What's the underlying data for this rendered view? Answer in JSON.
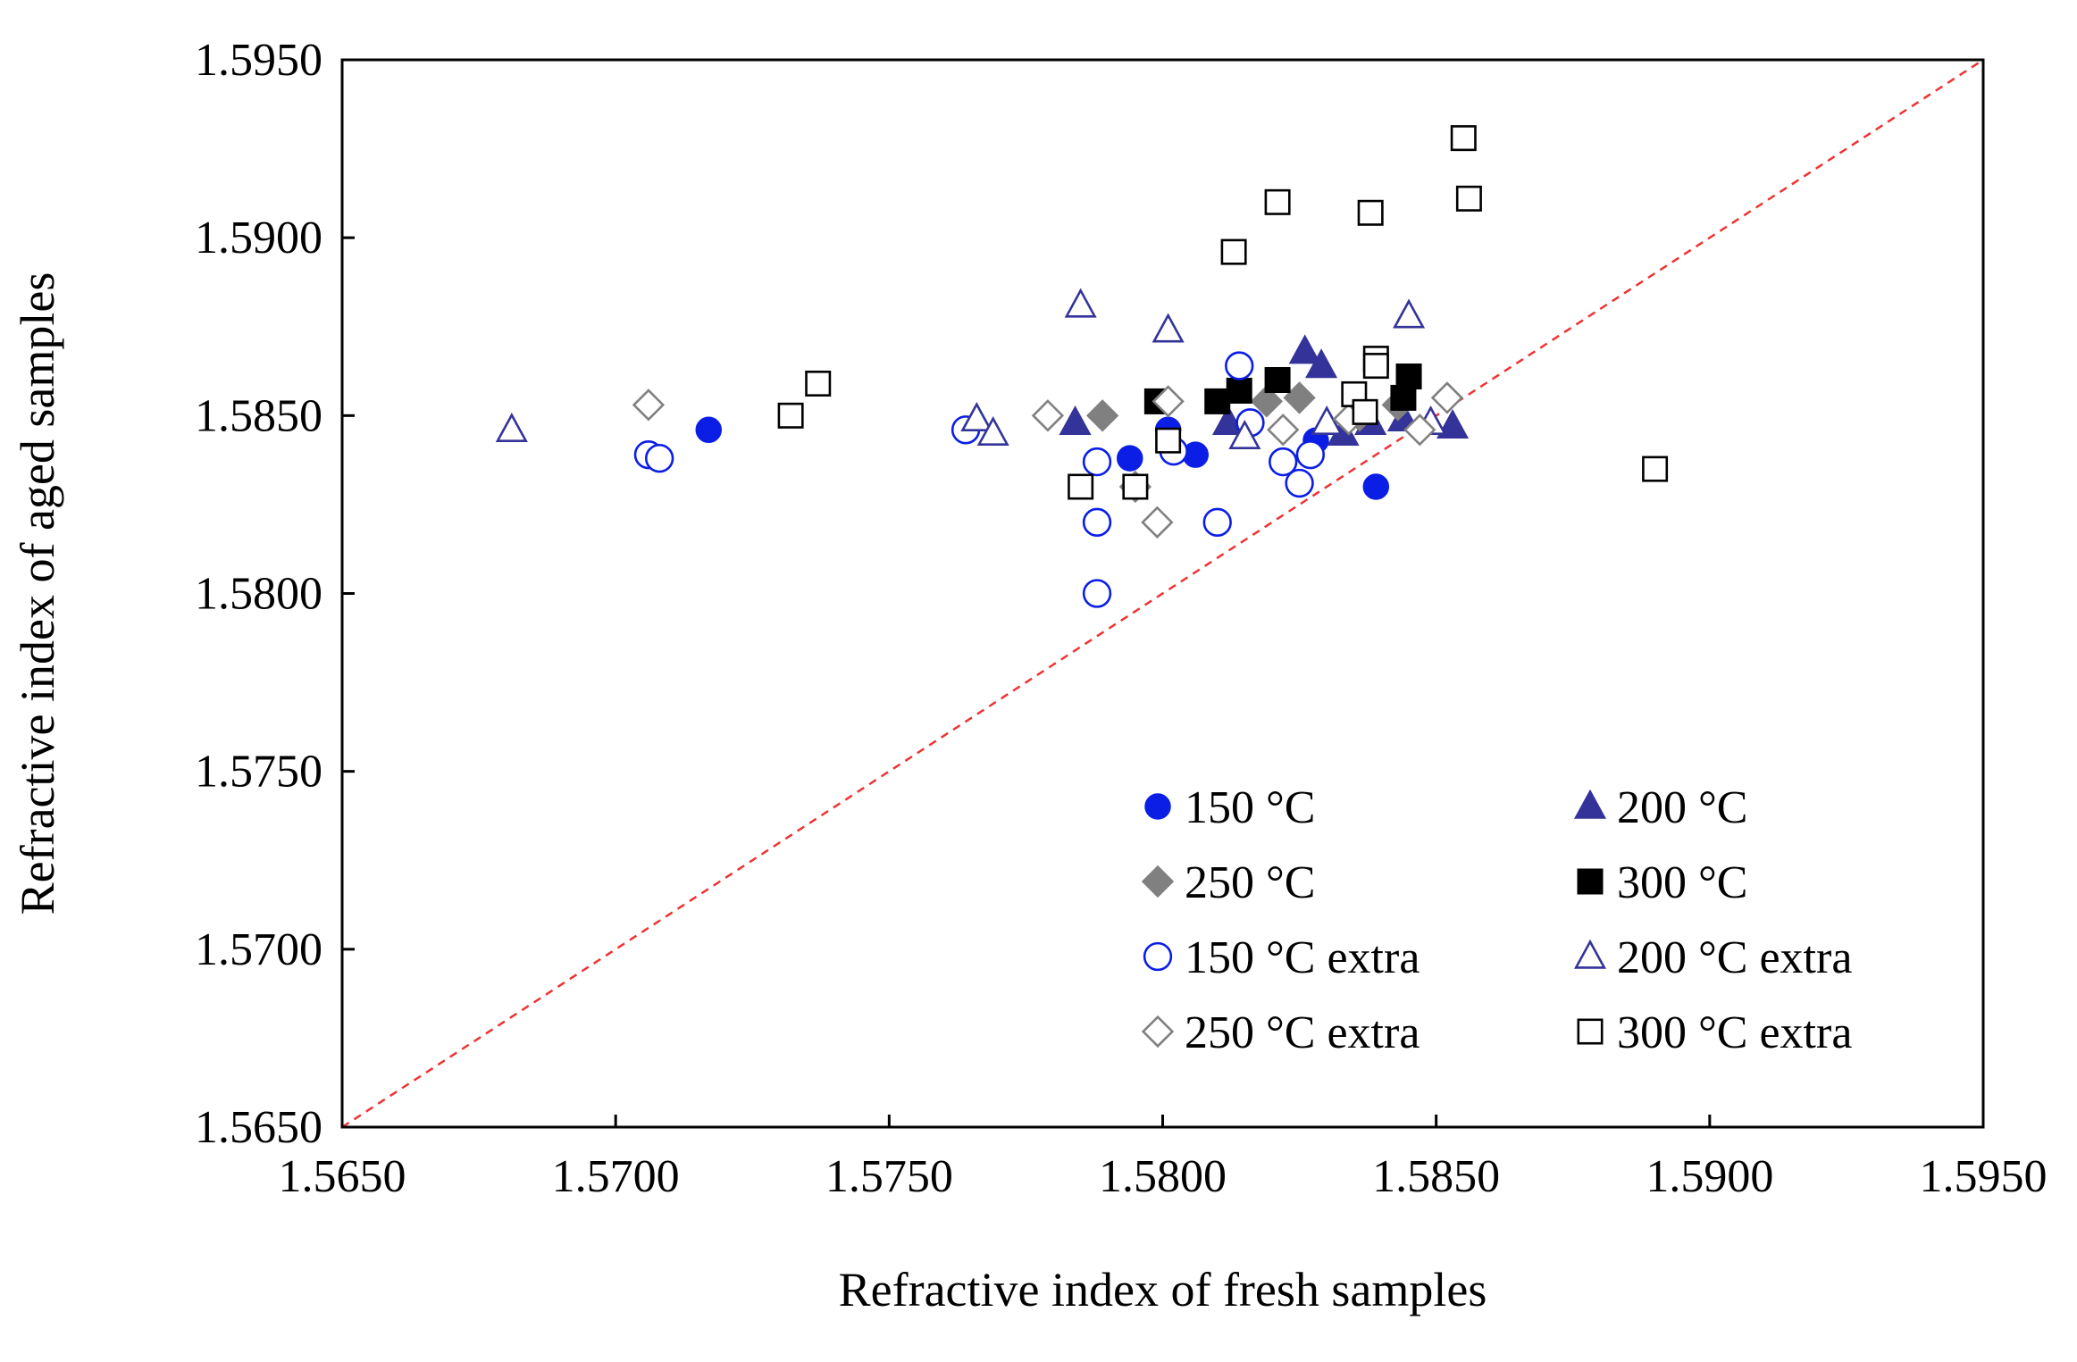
{
  "chart_data": {
    "type": "scatter",
    "title": "",
    "xlabel": "Refractive index of fresh samples",
    "ylabel": "Refractive index of aged samples",
    "xlim": [
      1.565,
      1.595
    ],
    "ylim": [
      1.565,
      1.595
    ],
    "xticks": [
      "1.5650",
      "1.5700",
      "1.5750",
      "1.5800",
      "1.5850",
      "1.5900",
      "1.5950"
    ],
    "yticks": [
      "1.5650",
      "1.5700",
      "1.5750",
      "1.5800",
      "1.5850",
      "1.5900",
      "1.5950"
    ],
    "grid": false,
    "legend_position": "lower-right",
    "reference_line": {
      "style": "dashed",
      "color": "#ee3333",
      "from": [
        1.565,
        1.565
      ],
      "to": [
        1.595,
        1.595
      ]
    },
    "series": [
      {
        "name": "150 °C",
        "marker": "circle",
        "filled": true,
        "color": "#0a1ee6",
        "points": [
          [
            1.5717,
            1.5846
          ],
          [
            1.5794,
            1.5838
          ],
          [
            1.5801,
            1.5846
          ],
          [
            1.5806,
            1.5839
          ],
          [
            1.5828,
            1.5843
          ],
          [
            1.5839,
            1.583
          ]
        ]
      },
      {
        "name": "200 °C",
        "marker": "triangle",
        "filled": true,
        "color": "#33339a",
        "points": [
          [
            1.5784,
            1.5848
          ],
          [
            1.5812,
            1.5848
          ],
          [
            1.5826,
            1.5868
          ],
          [
            1.5829,
            1.5864
          ],
          [
            1.5833,
            1.5845
          ],
          [
            1.5838,
            1.5848
          ],
          [
            1.5844,
            1.5849
          ],
          [
            1.5853,
            1.5847
          ]
        ]
      },
      {
        "name": "250 °C",
        "marker": "diamond",
        "filled": true,
        "color": "#808080",
        "points": [
          [
            1.5789,
            1.585
          ],
          [
            1.5819,
            1.5854
          ],
          [
            1.5825,
            1.5855
          ],
          [
            1.5836,
            1.585
          ],
          [
            1.5843,
            1.5853
          ]
        ]
      },
      {
        "name": "300 °C",
        "marker": "square",
        "filled": true,
        "color": "#000000",
        "points": [
          [
            1.5799,
            1.5854
          ],
          [
            1.581,
            1.5854
          ],
          [
            1.5814,
            1.5857
          ],
          [
            1.5821,
            1.586
          ],
          [
            1.5845,
            1.5861
          ],
          [
            1.5844,
            1.5855
          ]
        ]
      },
      {
        "name": "150 °C extra",
        "marker": "circle",
        "filled": false,
        "color": "#0a1ee6",
        "points": [
          [
            1.5706,
            1.5839
          ],
          [
            1.5708,
            1.5838
          ],
          [
            1.5764,
            1.5846
          ],
          [
            1.5788,
            1.5837
          ],
          [
            1.5788,
            1.582
          ],
          [
            1.5788,
            1.58
          ],
          [
            1.5802,
            1.584
          ],
          [
            1.581,
            1.582
          ],
          [
            1.5814,
            1.5864
          ],
          [
            1.5816,
            1.5848
          ],
          [
            1.5822,
            1.5837
          ],
          [
            1.5825,
            1.5831
          ],
          [
            1.5827,
            1.5839
          ]
        ]
      },
      {
        "name": "200 °C extra",
        "marker": "triangle",
        "filled": false,
        "color": "#33339a",
        "points": [
          [
            1.5681,
            1.5846
          ],
          [
            1.5766,
            1.5849
          ],
          [
            1.5769,
            1.5845
          ],
          [
            1.5785,
            1.5881
          ],
          [
            1.5801,
            1.5874
          ],
          [
            1.5815,
            1.5844
          ],
          [
            1.583,
            1.5848
          ],
          [
            1.5845,
            1.5878
          ],
          [
            1.5849,
            1.5848
          ]
        ]
      },
      {
        "name": "250 °C extra",
        "marker": "diamond",
        "filled": false,
        "color": "#808080",
        "points": [
          [
            1.5706,
            1.5853
          ],
          [
            1.5779,
            1.585
          ],
          [
            1.5795,
            1.583
          ],
          [
            1.5799,
            1.582
          ],
          [
            1.5801,
            1.5854
          ],
          [
            1.5822,
            1.5846
          ],
          [
            1.5834,
            1.5849
          ],
          [
            1.5847,
            1.5846
          ],
          [
            1.5852,
            1.5855
          ]
        ]
      },
      {
        "name": "300 °C extra",
        "marker": "square",
        "filled": false,
        "color": "#000000",
        "points": [
          [
            1.5732,
            1.585
          ],
          [
            1.5737,
            1.5859
          ],
          [
            1.5785,
            1.583
          ],
          [
            1.5795,
            1.583
          ],
          [
            1.5801,
            1.5843
          ],
          [
            1.5813,
            1.5896
          ],
          [
            1.5821,
            1.591
          ],
          [
            1.5835,
            1.5856
          ],
          [
            1.5837,
            1.5851
          ],
          [
            1.5838,
            1.5907
          ],
          [
            1.5839,
            1.5866
          ],
          [
            1.5839,
            1.5864
          ],
          [
            1.5855,
            1.5928
          ],
          [
            1.5856,
            1.5911
          ],
          [
            1.589,
            1.5835
          ]
        ]
      }
    ]
  }
}
